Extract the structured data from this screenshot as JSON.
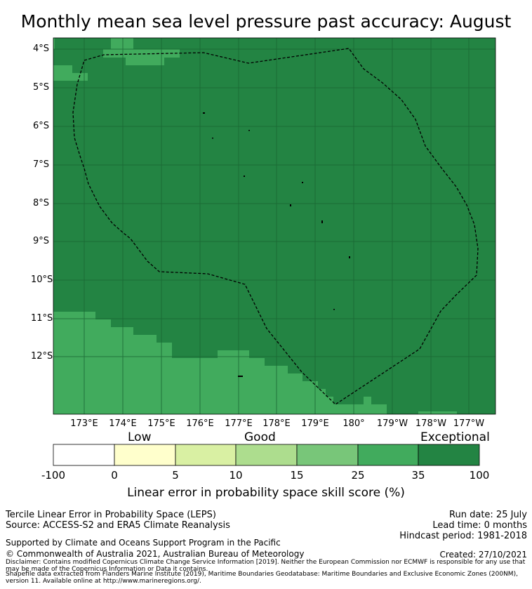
{
  "title": "Monthly mean sea level pressure past accuracy: August",
  "map": {
    "lat_labels": [
      "4°S",
      "5°S",
      "6°S",
      "7°S",
      "8°S",
      "9°S",
      "10°S",
      "11°S",
      "12°S"
    ],
    "lon_labels": [
      "173°E",
      "174°E",
      "175°E",
      "176°E",
      "177°E",
      "178°E",
      "179°E",
      "180°",
      "179°W",
      "178°W",
      "177°W"
    ],
    "colors": {
      "exceptional": "#238443",
      "good_35": "#41ab5d",
      "grid": "#1a6633",
      "boundary": "#000000"
    },
    "legend_region_fill_note": ""
  },
  "colorbar": {
    "category_labels": [
      "Low",
      "Good",
      "Exceptional"
    ],
    "ticks": [
      "-100",
      "0",
      "5",
      "10",
      "15",
      "25",
      "35",
      "100"
    ],
    "colors": [
      "#ffffff",
      "#ffffcc",
      "#d9f0a3",
      "#addd8e",
      "#78c679",
      "#41ab5d",
      "#238443"
    ],
    "title": "Linear error in probability space skill score (%)"
  },
  "footer": {
    "left_line1": "Tercile Linear Error in Probability Space (LEPS)",
    "left_line2": "Source: ACCESS-S2 and ERA5 Climate Reanalysis",
    "right_line1": "Run date: 25 July",
    "right_line2": "Lead time: 0 months",
    "right_line3": "Hindcast period: 1981-2018",
    "support": "Supported by Climate and Oceans Support Program in the Pacific",
    "copyright": "© Commonwealth of Australia 2021, Australian Bureau of Meteorology",
    "created": "Created: 27/10/2021",
    "disclaimer": "Disclaimer: Contains modified Copernicus Climate Change Service Information [2019]. Neither the European Commission nor ECMWF is responsible for any use that may be made of the Copernicus Information or Data it contains.",
    "shapefile": "Shapefile data extracted from Flanders Marine Institute (2019), Maritime Boundaries Geodatabase: Maritime Boundaries and Exclusive Economic Zones (200NM), version 11. Available online at http://www.marineregions.org/."
  }
}
